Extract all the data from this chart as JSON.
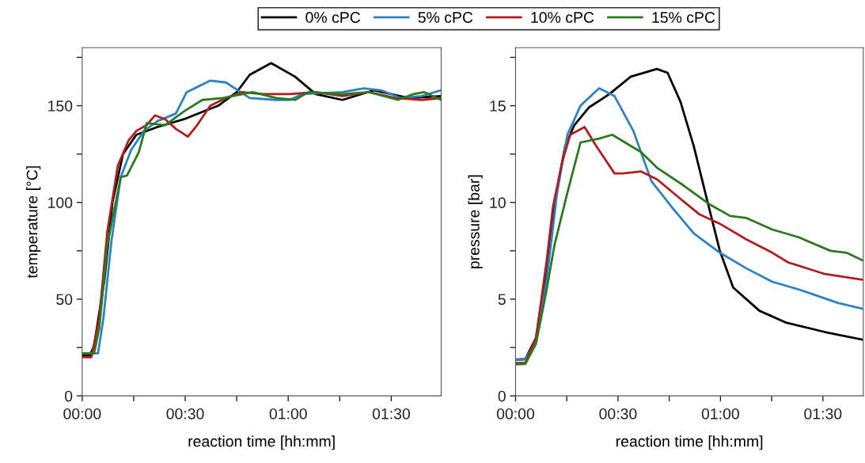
{
  "chart_data": [
    {
      "type": "line",
      "xlabel": "reaction time [hh:mm]",
      "ylabel": "temperature [°C]",
      "legend": "top",
      "xlim": [
        0,
        1.742
      ],
      "xticks": [
        {
          "value": 0,
          "label": "00:00"
        },
        {
          "value": 0.25,
          "label": null
        },
        {
          "value": 0.5,
          "label": "00:30"
        },
        {
          "value": 0.75,
          "label": null
        },
        {
          "value": 1,
          "label": "01:00"
        },
        {
          "value": 1.25,
          "label": null
        },
        {
          "value": 1.5,
          "label": "01:30"
        }
      ],
      "ylim": [
        0,
        180
      ],
      "yticks": [
        0,
        {
          "value": 25,
          "label": null
        },
        50,
        {
          "value": 75,
          "label": null
        },
        100,
        {
          "value": 125,
          "label": null
        },
        150,
        {
          "value": 175,
          "label": null
        }
      ],
      "series": [
        {
          "name": "0% cPC",
          "color": "#000000",
          "x": [
            0,
            0.038,
            0.058,
            0.108,
            0.147,
            0.198,
            0.263,
            0.365,
            0.493,
            0.66,
            0.75,
            0.813,
            0.917,
            1.033,
            1.133,
            1.263,
            1.417,
            1.583,
            1.742
          ],
          "values": [
            21,
            21,
            26,
            60,
            100,
            125,
            135,
            139,
            143,
            150,
            157,
            166,
            172,
            165,
            156,
            153,
            158,
            154,
            155
          ]
        },
        {
          "name": "5% cPC",
          "color": "#2b83c6",
          "x": [
            0,
            0.077,
            0.103,
            0.142,
            0.187,
            0.237,
            0.3,
            0.365,
            0.455,
            0.507,
            0.622,
            0.698,
            0.813,
            0.942,
            1.007,
            1.067,
            1.263,
            1.367,
            1.45,
            1.545,
            1.647,
            1.742
          ],
          "values": [
            22,
            22,
            40,
            80,
            113,
            127,
            137,
            142,
            146,
            157,
            163,
            162,
            154,
            153,
            153,
            156,
            157,
            159,
            158,
            154,
            155,
            158
          ]
        },
        {
          "name": "10% cPC",
          "color": "#b01e1e",
          "x": [
            0,
            0.045,
            0.083,
            0.122,
            0.173,
            0.225,
            0.263,
            0.313,
            0.353,
            0.403,
            0.455,
            0.513,
            0.558,
            0.622,
            0.698,
            0.775,
            0.878,
            1.007,
            1.133,
            1.263,
            1.392,
            1.52,
            1.647,
            1.742
          ],
          "values": [
            20,
            20,
            40,
            85,
            119,
            132,
            137,
            140,
            145,
            143,
            138,
            134,
            140,
            150,
            154,
            157,
            156,
            156,
            157,
            155,
            157,
            154,
            153,
            154
          ]
        },
        {
          "name": "15% cPC",
          "color": "#2a7a1e",
          "x": [
            0,
            0.058,
            0.083,
            0.122,
            0.187,
            0.218,
            0.275,
            0.313,
            0.403,
            0.493,
            0.583,
            0.683,
            0.827,
            0.942,
            1.033,
            1.097,
            1.263,
            1.392,
            1.532,
            1.608,
            1.66,
            1.742
          ],
          "values": [
            22,
            22,
            35,
            78,
            113,
            114,
            126,
            141,
            140,
            147,
            153,
            154,
            157,
            154,
            153,
            157,
            156,
            157,
            153,
            156,
            157,
            153
          ]
        }
      ]
    },
    {
      "type": "line",
      "xlabel": "reaction time [hh:mm]",
      "ylabel": "pressure [bar]",
      "xlim": [
        0,
        1.697
      ],
      "xticks": [
        {
          "value": 0,
          "label": "00:00"
        },
        {
          "value": 0.25,
          "label": null
        },
        {
          "value": 0.5,
          "label": "00:30"
        },
        {
          "value": 0.75,
          "label": null
        },
        {
          "value": 1,
          "label": "01:00"
        },
        {
          "value": 1.25,
          "label": null
        },
        {
          "value": 1.5,
          "label": "01:30"
        }
      ],
      "ylim": [
        0,
        18
      ],
      "yticks": [
        0,
        {
          "value": 2.5,
          "label": null
        },
        5,
        {
          "value": 7.5,
          "label": null
        },
        10,
        {
          "value": 12.5,
          "label": null
        },
        15,
        {
          "value": 17.5,
          "label": null
        }
      ],
      "series": [
        {
          "color": "#000000",
          "x": [
            0,
            0.048,
            0.1,
            0.152,
            0.19,
            0.242,
            0.287,
            0.357,
            0.458,
            0.562,
            0.69,
            0.742,
            0.805,
            0.87,
            0.933,
            0.997,
            1.062,
            1.19,
            1.317,
            1.51,
            1.695
          ],
          "values": [
            1.87,
            1.9,
            3.0,
            6.5,
            10,
            12.9,
            14,
            14.9,
            15.6,
            16.5,
            16.9,
            16.7,
            15.2,
            12.9,
            10.2,
            7.5,
            5.6,
            4.4,
            3.8,
            3.3,
            2.9
          ]
        },
        {
          "color": "#2b83c6",
          "x": [
            0,
            0.048,
            0.1,
            0.152,
            0.203,
            0.253,
            0.317,
            0.408,
            0.483,
            0.575,
            0.663,
            0.767,
            0.87,
            0.997,
            1.125,
            1.253,
            1.382,
            1.575,
            1.695
          ],
          "values": [
            1.87,
            1.9,
            2.8,
            6,
            10.5,
            13.5,
            15.0,
            15.9,
            15.5,
            13.7,
            11.1,
            9.7,
            8.4,
            7.4,
            6.6,
            5.9,
            5.5,
            4.8,
            4.5
          ]
        },
        {
          "color": "#b01e1e",
          "x": [
            0,
            0.048,
            0.1,
            0.152,
            0.183,
            0.228,
            0.267,
            0.337,
            0.395,
            0.483,
            0.523,
            0.613,
            0.69,
            0.792,
            0.895,
            0.997,
            1.125,
            1.253,
            1.33,
            1.51,
            1.695
          ],
          "values": [
            1.7,
            1.7,
            3.0,
            7,
            9.8,
            12.1,
            13.5,
            13.9,
            12.9,
            11.5,
            11.5,
            11.6,
            11.2,
            10.3,
            9.4,
            8.9,
            8.1,
            7.4,
            6.9,
            6.3,
            6.0
          ]
        },
        {
          "color": "#2a7a1e",
          "x": [
            0,
            0.048,
            0.1,
            0.152,
            0.19,
            0.253,
            0.317,
            0.408,
            0.472,
            0.613,
            0.69,
            0.817,
            0.947,
            1.048,
            1.125,
            1.253,
            1.382,
            1.537,
            1.615,
            1.695
          ],
          "values": [
            1.63,
            1.65,
            2.7,
            5.5,
            7.8,
            10.5,
            13.1,
            13.3,
            13.5,
            12.6,
            11.8,
            10.9,
            9.9,
            9.3,
            9.2,
            8.6,
            8.2,
            7.5,
            7.4,
            7.0
          ]
        }
      ]
    }
  ]
}
